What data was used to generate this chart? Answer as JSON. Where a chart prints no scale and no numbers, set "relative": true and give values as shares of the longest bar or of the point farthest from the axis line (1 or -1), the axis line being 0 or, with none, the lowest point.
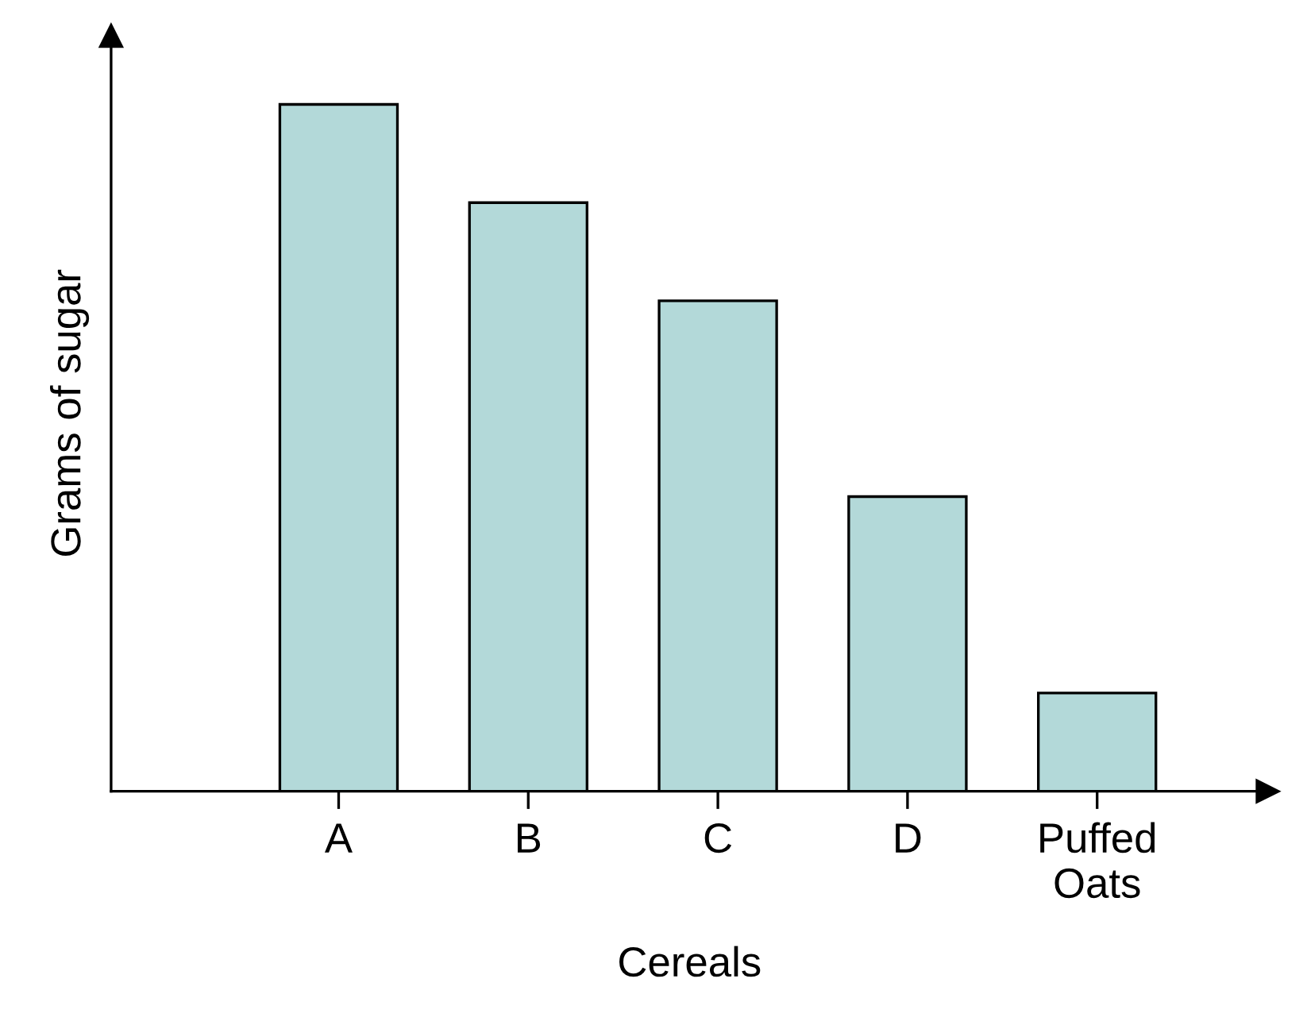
{
  "chart_data": {
    "type": "bar",
    "relative": true,
    "xlabel": "Cereals",
    "ylabel": "Grams of sugar",
    "categories": [
      "A",
      "B",
      "C",
      "D",
      "Puffed\nOats"
    ],
    "values": [
      1,
      0.857,
      0.714,
      0.429,
      0.143
    ],
    "color": "#b3d9d9",
    "grid": false
  }
}
